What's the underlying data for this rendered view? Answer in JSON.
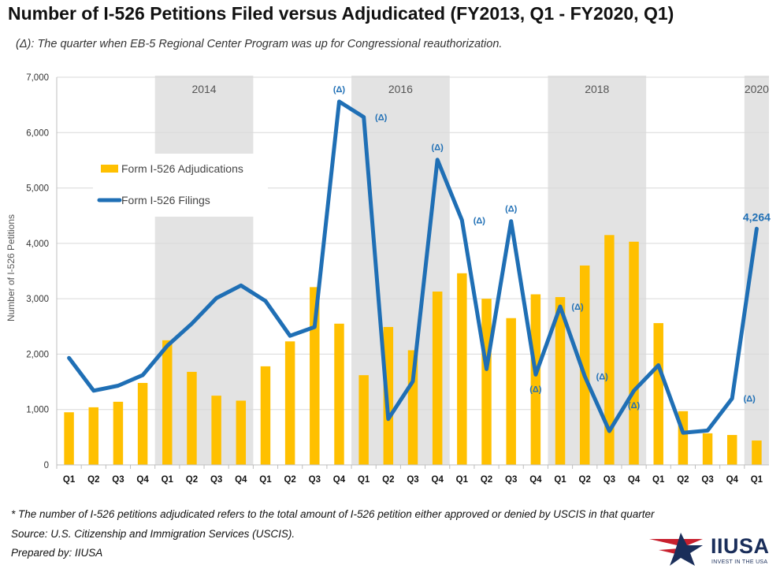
{
  "chart_data": {
    "type": "bar+line",
    "title": "Number of I-526 Petitions Filed versus Adjudicated (FY2013, Q1 - FY2020, Q1)",
    "subtitle": "(Δ): The quarter when EB-5 Regional Center Program was up for Congressional reauthorization.",
    "ylabel": "Number of I-526 Petitions",
    "ylim": [
      0,
      7000
    ],
    "yticks": [
      0,
      1000,
      2000,
      3000,
      4000,
      5000,
      6000,
      7000
    ],
    "ytick_labels": [
      "0",
      "1,000",
      "2,000",
      "3,000",
      "4,000",
      "5,000",
      "6,000",
      "7,000"
    ],
    "categories": [
      "Q1",
      "Q2",
      "Q3",
      "Q4",
      "Q1",
      "Q2",
      "Q3",
      "Q4",
      "Q1",
      "Q2",
      "Q3",
      "Q4",
      "Q1",
      "Q2",
      "Q3",
      "Q4",
      "Q1",
      "Q2",
      "Q3",
      "Q4",
      "Q1",
      "Q2",
      "Q3",
      "Q4",
      "Q1",
      "Q2",
      "Q3",
      "Q4",
      "Q1"
    ],
    "year_bands": [
      {
        "label": "2014",
        "start": 4,
        "end": 7
      },
      {
        "label": "2016",
        "start": 12,
        "end": 15
      },
      {
        "label": "2018",
        "start": 20,
        "end": 23
      },
      {
        "label": "2020",
        "start": 28,
        "end": 28
      }
    ],
    "series": [
      {
        "name": "Form I-526 Adjudications",
        "type": "bar",
        "color": "#FFC000",
        "values": [
          950,
          1040,
          1140,
          1480,
          2250,
          1680,
          1250,
          1160,
          1780,
          2230,
          3210,
          2550,
          1620,
          2490,
          2070,
          3130,
          3460,
          3000,
          2650,
          3080,
          3030,
          3600,
          4150,
          4030,
          2560,
          970,
          570,
          540,
          440
        ]
      },
      {
        "name": "Form I-526 Filings",
        "type": "line",
        "color": "#1f6fb5",
        "values": [
          1930,
          1340,
          1430,
          1620,
          2150,
          2550,
          3010,
          3240,
          2960,
          2330,
          2490,
          6560,
          6280,
          830,
          1510,
          5510,
          4420,
          1730,
          4400,
          1630,
          2860,
          1600,
          610,
          1340,
          1800,
          580,
          620,
          1200,
          4264
        ]
      }
    ],
    "delta_markers": [
      {
        "index": 11,
        "text": "(Δ)",
        "pos": "above"
      },
      {
        "index": 12,
        "text": "(Δ)",
        "pos": "right"
      },
      {
        "index": 15,
        "text": "(Δ)",
        "pos": "above"
      },
      {
        "index": 16,
        "text": "(Δ)",
        "pos": "right"
      },
      {
        "index": 18,
        "text": "(Δ)",
        "pos": "above"
      },
      {
        "index": 19,
        "text": "(Δ)",
        "pos": "below"
      },
      {
        "index": 20,
        "text": "(Δ)",
        "pos": "right"
      },
      {
        "index": 21,
        "text": "(Δ)",
        "pos": "right"
      },
      {
        "index": 23,
        "text": "(Δ)",
        "pos": "below"
      },
      {
        "index": 27,
        "text": "(Δ)",
        "pos": "right"
      }
    ],
    "last_point_label": "4,264",
    "legend": [
      "Form I-526 Adjudications",
      "Form I-526 Filings"
    ],
    "legend_position": "upper-left"
  },
  "footnotes": {
    "note": "* The number of I-526 petitions adjudicated refers to the total amount of I-526 petition either approved or denied by USCIS in that quarter",
    "source": "Source: U.S. Citizenship and Immigration Services (USCIS).",
    "prepared": "Prepared by: IIUSA"
  },
  "logo": {
    "name": "IIUSA",
    "tagline": "INVEST IN THE USA",
    "colors": {
      "navy": "#1a2e5a",
      "red": "#c8202e"
    }
  }
}
